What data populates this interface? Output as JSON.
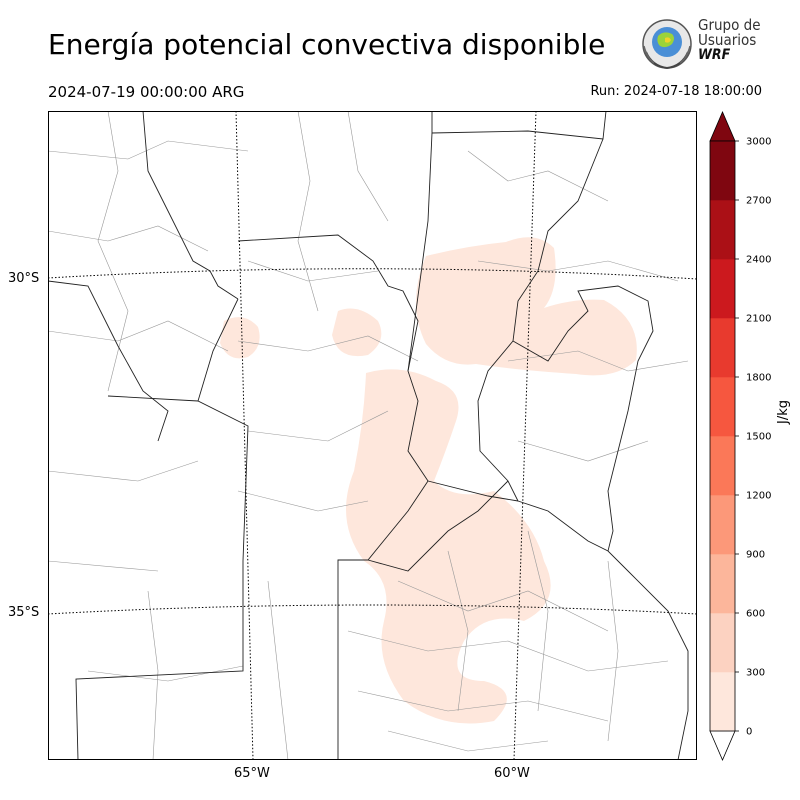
{
  "header": {
    "title": "Energía potencial convectiva disponible",
    "valid_time": "2024-07-19 00:00:00 ARG",
    "run_time": "Run: 2024-07-18 18:00:00"
  },
  "logo": {
    "line1": "Grupo de",
    "line2": "Usuarios",
    "line3": "WRF"
  },
  "map": {
    "lat_labels": [
      "30°S",
      "35°S"
    ],
    "lon_labels": [
      "65°W",
      "60°W"
    ]
  },
  "colorbar": {
    "unit": "J/kg",
    "ticks": [
      "0",
      "300",
      "600",
      "900",
      "1200",
      "1500",
      "1800",
      "2100",
      "2400",
      "2700",
      "3000"
    ],
    "colors": [
      "#fee7dc",
      "#fcd2c1",
      "#fcb69b",
      "#fc9879",
      "#fb7858",
      "#f6573f",
      "#e83a2e",
      "#cc191e",
      "#ab1016",
      "#7f0610"
    ]
  }
}
